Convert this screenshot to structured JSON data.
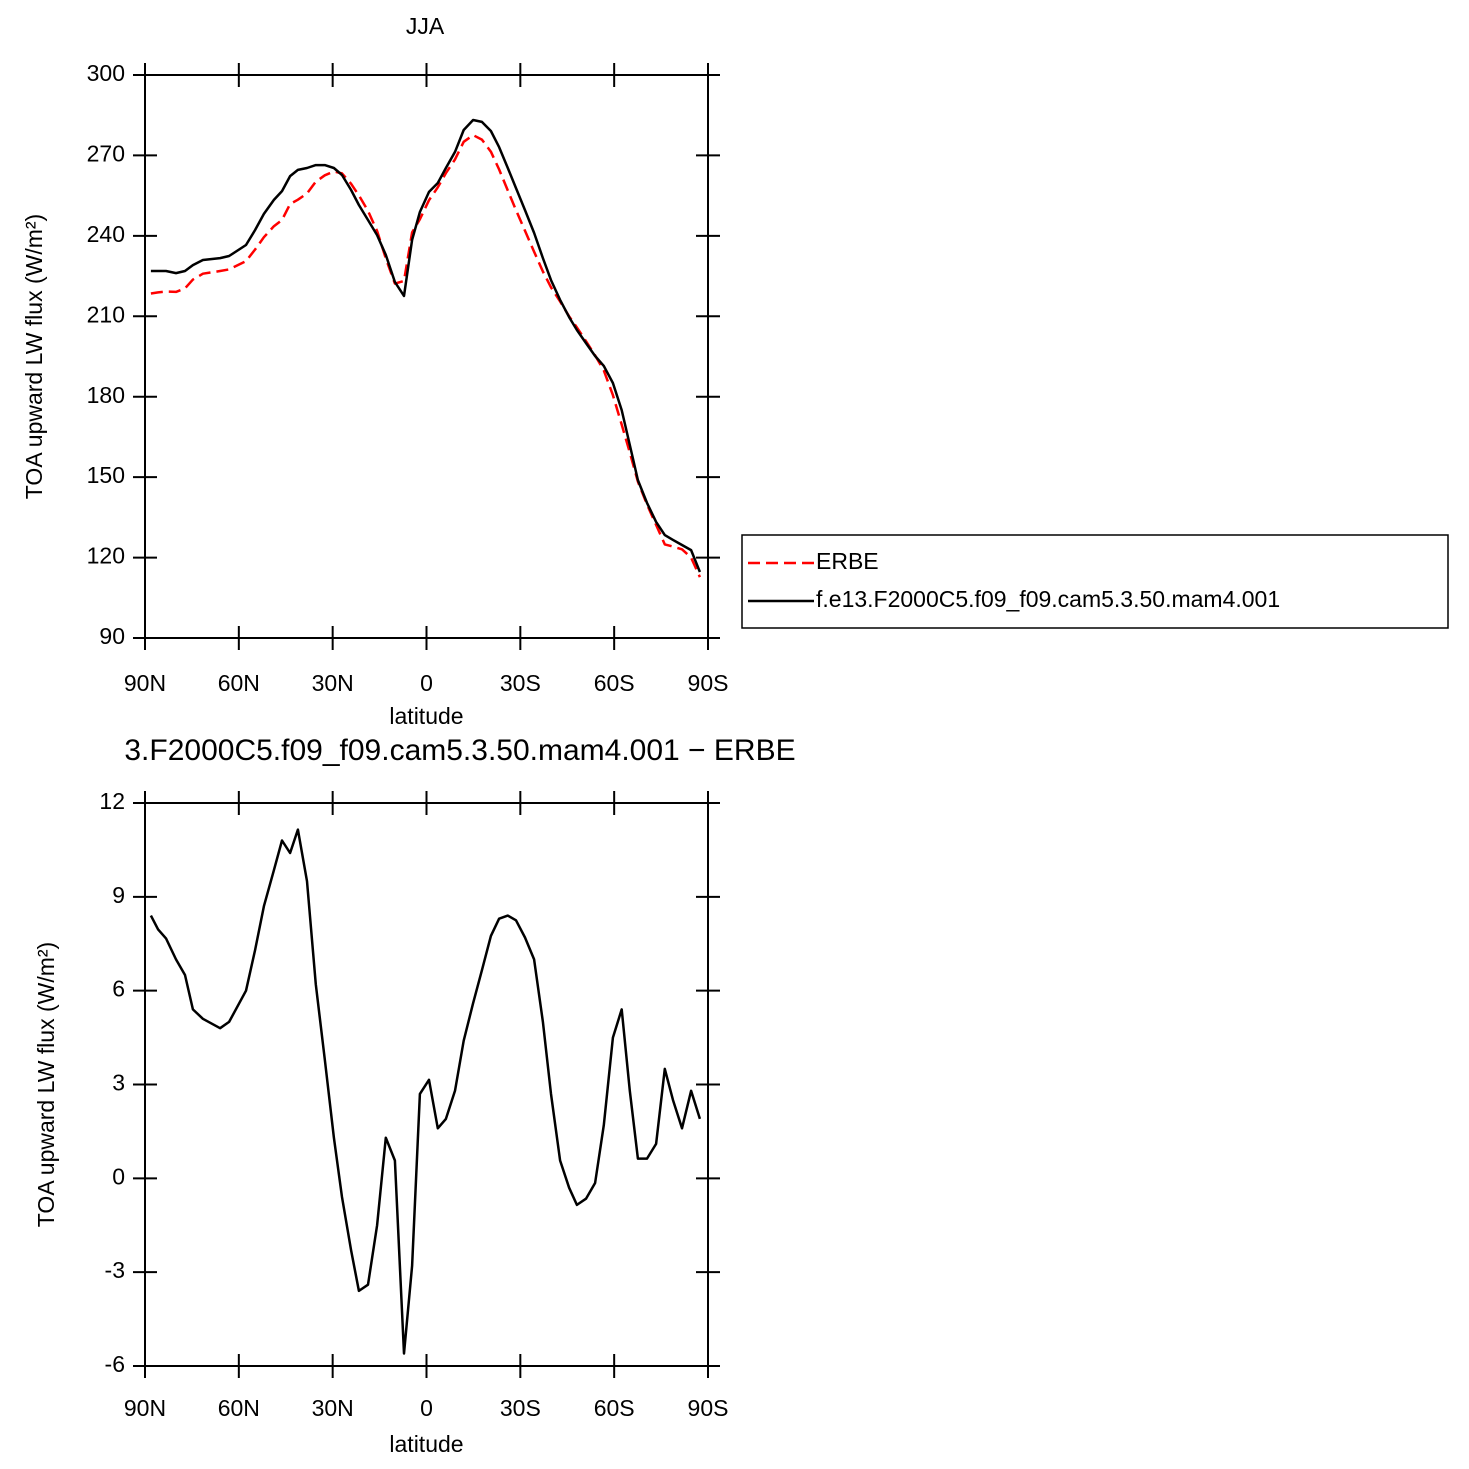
{
  "chart_data": [
    {
      "type": "line",
      "title": "JJA",
      "xlabel": "latitude",
      "ylabel": "TOA upward LW flux (W/m²)",
      "x": [
        88.1,
        85.8,
        83.3,
        80.1,
        77.2,
        74.7,
        71.5,
        66.0,
        63.1,
        57.7,
        54.8,
        52.0,
        48.8,
        46.2,
        43.6,
        41.1,
        38.2,
        35.4,
        32.5,
        29.6,
        27.0,
        24.1,
        21.6,
        18.7,
        15.8,
        13.0,
        10.1,
        7.2,
        4.6,
        2.1,
        -0.8,
        -3.6,
        -6.2,
        -9.1,
        -11.9,
        -14.9,
        -17.7,
        -20.6,
        -23.2,
        -26.0,
        -28.6,
        -31.5,
        -34.4,
        -37.2,
        -39.8,
        -42.7,
        -45.6,
        -48.1,
        -51.0,
        -53.9,
        -56.7,
        -59.6,
        -62.4,
        -65.0,
        -67.6,
        -70.5,
        -73.4,
        -76.2,
        -78.8,
        -81.7,
        -84.6,
        -87.4
      ],
      "series": [
        {
          "name": "ERBE",
          "color": "#ff0000",
          "dash": true,
          "values": [
            218.5,
            218.9,
            219.2,
            219.1,
            220.4,
            223.7,
            225.9,
            226.9,
            227.5,
            230.6,
            234.9,
            239.5,
            243.6,
            245.9,
            251.9,
            253.5,
            255.8,
            260.2,
            262.6,
            264.0,
            263.3,
            259.4,
            255.1,
            249.3,
            241.8,
            231.6,
            222.2,
            223.2,
            241.3,
            246.2,
            253.3,
            258.1,
            263.4,
            268.5,
            275.1,
            277.6,
            275.9,
            271.4,
            264.8,
            256.9,
            249.6,
            241.9,
            234.1,
            226.7,
            220.8,
            215.5,
            210.0,
            205.8,
            200.7,
            195.4,
            189.8,
            180.6,
            169.6,
            159.2,
            148.3,
            139.8,
            132.2,
            124.9,
            124.1,
            123.1,
            120.0,
            112.7
          ]
        },
        {
          "name": "f.e13.F2000C5.f09_f09.cam5.3.50.mam4.001",
          "color": "#000000",
          "dash": false,
          "values": [
            226.9,
            226.9,
            226.9,
            226.1,
            226.9,
            229.1,
            231.0,
            231.7,
            232.5,
            236.6,
            242.2,
            248.2,
            253.4,
            256.7,
            262.3,
            264.6,
            265.3,
            266.4,
            266.4,
            265.3,
            262.7,
            257.1,
            251.5,
            245.9,
            240.3,
            232.9,
            222.8,
            217.6,
            238.5,
            248.9,
            256.4,
            259.7,
            265.3,
            271.3,
            279.5,
            283.2,
            282.5,
            279.1,
            273.1,
            265.3,
            257.8,
            249.6,
            241.1,
            231.7,
            223.5,
            216.1,
            209.7,
            204.9,
            200.0,
            195.2,
            191.5,
            185.1,
            175.0,
            162.0,
            148.9,
            140.4,
            133.3,
            128.4,
            126.6,
            124.7,
            122.8,
            114.6
          ]
        }
      ],
      "xlim": [
        90,
        -90
      ],
      "xticks": [
        {
          "value": 90,
          "label": "90N"
        },
        {
          "value": 60,
          "label": "60N"
        },
        {
          "value": 30,
          "label": "30N"
        },
        0,
        {
          "value": -30,
          "label": "30S"
        },
        {
          "value": -60,
          "label": "60S"
        },
        {
          "value": -90,
          "label": "90S"
        }
      ],
      "ylim": [
        90,
        300
      ],
      "yticks": [
        90,
        120,
        150,
        180,
        210,
        240,
        270,
        300
      ],
      "legend": "outside-right"
    },
    {
      "type": "line",
      "title": "3.F2000C5.f09_f09.cam5.3.50.mam4.001 − ERBE",
      "xlabel": "latitude",
      "ylabel": "TOA upward LW flux (W/m²)",
      "x": [
        88.1,
        85.8,
        83.3,
        80.1,
        77.2,
        74.7,
        71.5,
        66.0,
        63.1,
        57.7,
        54.8,
        52.0,
        48.8,
        46.2,
        43.6,
        41.1,
        38.2,
        35.4,
        32.5,
        29.6,
        27.0,
        24.1,
        21.6,
        18.7,
        15.8,
        13.0,
        10.1,
        7.2,
        4.6,
        2.1,
        -0.8,
        -3.6,
        -6.2,
        -9.1,
        -11.9,
        -14.9,
        -17.7,
        -20.6,
        -23.2,
        -26.0,
        -28.6,
        -31.5,
        -34.4,
        -37.2,
        -39.8,
        -42.7,
        -45.6,
        -48.1,
        -51.0,
        -53.9,
        -56.7,
        -59.6,
        -62.4,
        -65.0,
        -67.6,
        -70.5,
        -73.4,
        -76.2,
        -78.8,
        -81.7,
        -84.6,
        -87.4
      ],
      "series": [
        {
          "color": "#000000",
          "dash": false,
          "values": [
            8.4,
            7.96,
            7.67,
            7.0,
            6.5,
            5.4,
            5.1,
            4.8,
            5.0,
            6.0,
            7.3,
            8.7,
            9.85,
            10.8,
            10.4,
            11.15,
            9.5,
            6.2,
            3.8,
            1.3,
            -0.6,
            -2.3,
            -3.6,
            -3.4,
            -1.5,
            1.3,
            0.57,
            -5.6,
            -2.8,
            2.7,
            3.15,
            1.6,
            1.9,
            2.8,
            4.4,
            5.6,
            6.65,
            7.75,
            8.3,
            8.4,
            8.25,
            7.7,
            7.0,
            5.0,
            2.7,
            0.57,
            -0.3,
            -0.85,
            -0.65,
            -0.15,
            1.7,
            4.5,
            5.4,
            2.8,
            0.63,
            0.63,
            1.1,
            3.5,
            2.5,
            1.6,
            2.8,
            1.9
          ]
        }
      ],
      "xlim": [
        90,
        -90
      ],
      "xticks": [
        {
          "value": 90,
          "label": "90N"
        },
        {
          "value": 60,
          "label": "60N"
        },
        {
          "value": 30,
          "label": "30N"
        },
        0,
        {
          "value": -30,
          "label": "30S"
        },
        {
          "value": -60,
          "label": "60S"
        },
        {
          "value": -90,
          "label": "90S"
        }
      ],
      "ylim": [
        -6,
        12
      ],
      "yticks": [
        -6,
        -3,
        0,
        3,
        6,
        9,
        12
      ]
    }
  ]
}
